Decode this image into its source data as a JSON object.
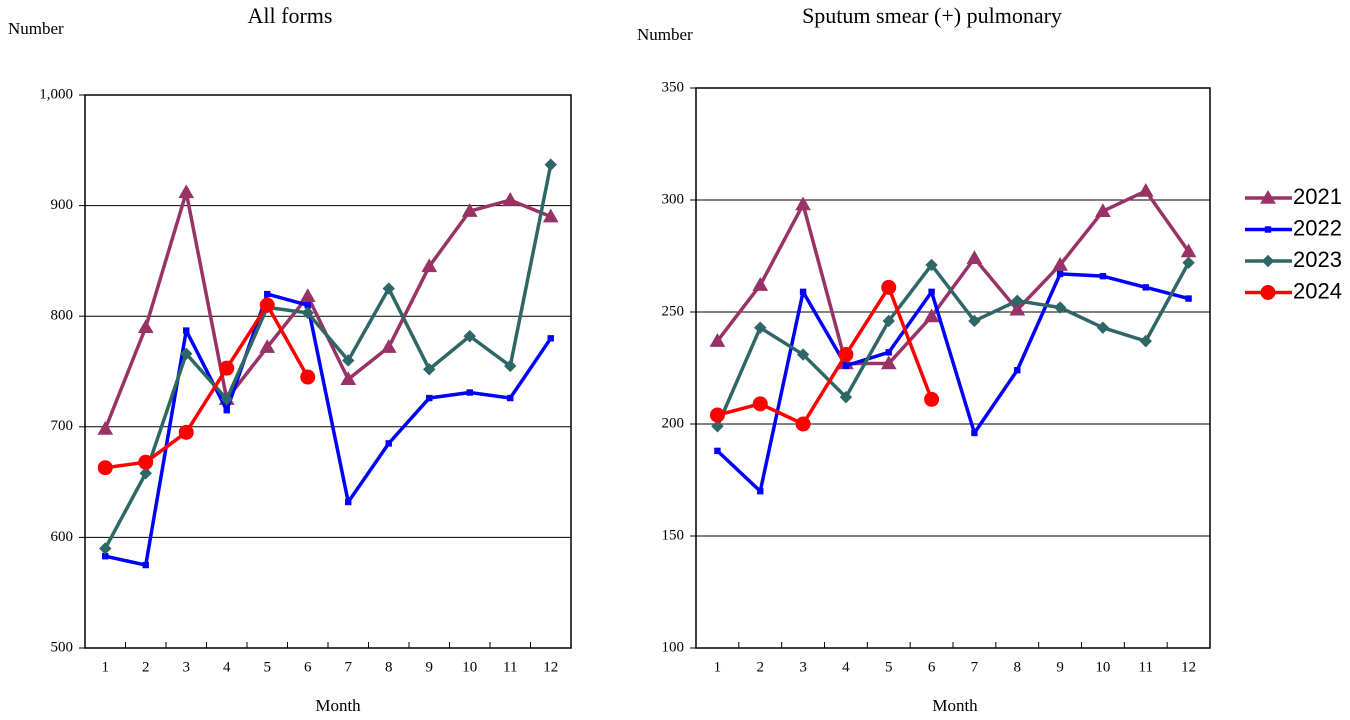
{
  "chart_data": [
    {
      "type": "line",
      "title": "All forms",
      "ylabel": "Number",
      "xlabel": "Month",
      "categories": [
        "1",
        "2",
        "3",
        "4",
        "5",
        "6",
        "7",
        "8",
        "9",
        "10",
        "11",
        "12"
      ],
      "ylim": [
        500,
        1000
      ],
      "yticks": [
        500,
        600,
        700,
        800,
        900,
        {
          "value": 1000,
          "label": "1,000"
        }
      ],
      "grid": true,
      "series": [
        {
          "name": "2021",
          "color": "#993366",
          "marker": "triangle",
          "values": [
            698,
            790,
            912,
            725,
            772,
            818,
            743,
            772,
            845,
            895,
            905,
            890
          ]
        },
        {
          "name": "2022",
          "color": "#0000ff",
          "marker": "square",
          "values": [
            583,
            575,
            787,
            715,
            820,
            810,
            632,
            685,
            726,
            731,
            726,
            780
          ]
        },
        {
          "name": "2023",
          "color": "#2f6767",
          "marker": "diamond",
          "values": [
            590,
            658,
            766,
            725,
            808,
            803,
            760,
            825,
            752,
            782,
            755,
            937
          ]
        },
        {
          "name": "2024",
          "color": "#ff0000",
          "marker": "circle",
          "values": [
            663,
            668,
            695,
            753,
            810,
            745,
            null,
            null,
            null,
            null,
            null,
            null
          ]
        }
      ]
    },
    {
      "type": "line",
      "title": "Sputum smear (+) pulmonary",
      "ylabel": "Number",
      "xlabel": "Month",
      "categories": [
        "1",
        "2",
        "3",
        "4",
        "5",
        "6",
        "7",
        "8",
        "9",
        "10",
        "11",
        "12"
      ],
      "ylim": [
        100,
        350
      ],
      "yticks": [
        100,
        150,
        200,
        250,
        300,
        350
      ],
      "grid": true,
      "legend": "right",
      "series": [
        {
          "name": "2021",
          "color": "#993366",
          "marker": "triangle",
          "values": [
            237,
            262,
            298,
            227,
            227,
            248,
            274,
            251,
            271,
            295,
            304,
            277
          ]
        },
        {
          "name": "2022",
          "color": "#0000ff",
          "marker": "square",
          "values": [
            188,
            170,
            259,
            226,
            232,
            259,
            196,
            224,
            267,
            266,
            261,
            256
          ]
        },
        {
          "name": "2023",
          "color": "#2f6767",
          "marker": "diamond",
          "values": [
            199,
            243,
            231,
            212,
            246,
            271,
            246,
            255,
            252,
            243,
            237,
            272
          ]
        },
        {
          "name": "2024",
          "color": "#ff0000",
          "marker": "circle",
          "values": [
            204,
            209,
            200,
            231,
            261,
            211,
            null,
            null,
            null,
            null,
            null,
            null
          ]
        }
      ]
    }
  ]
}
